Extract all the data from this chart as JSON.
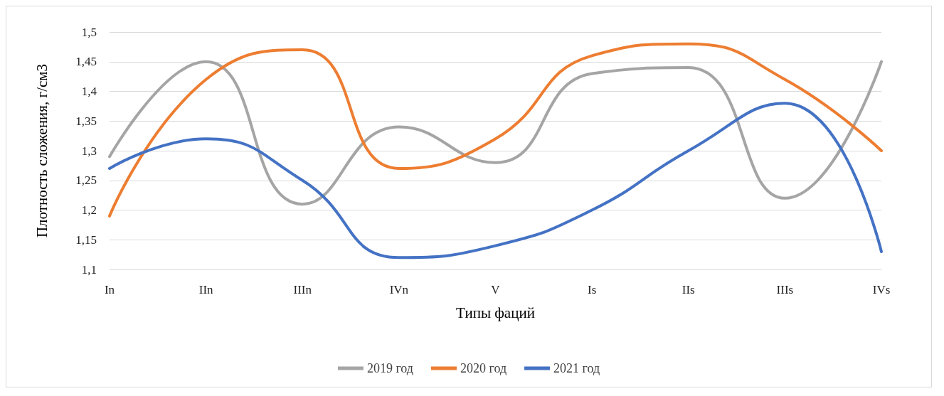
{
  "chart_data": {
    "type": "line",
    "xlabel": "Типы фаций",
    "ylabel": "Плотность сложения, г/см3",
    "categories": [
      "In",
      "IIn",
      "IIIn",
      "IVn",
      "V",
      "Is",
      "IIs",
      "IIIs",
      "IVs"
    ],
    "series": [
      {
        "name": "2019 год",
        "color": "#a5a5a5",
        "values": [
          1.29,
          1.45,
          1.21,
          1.34,
          1.28,
          1.43,
          1.44,
          1.22,
          1.45
        ]
      },
      {
        "name": "2020 год",
        "color": "#ed7d31",
        "values": [
          1.19,
          1.42,
          1.47,
          1.27,
          1.32,
          1.46,
          1.48,
          1.42,
          1.3
        ]
      },
      {
        "name": "2021 год",
        "color": "#4472c4",
        "values": [
          1.27,
          1.32,
          1.25,
          1.12,
          1.14,
          1.2,
          1.3,
          1.38,
          1.13
        ]
      }
    ],
    "ylim": [
      1.1,
      1.5
    ],
    "yticks": [
      {
        "value": 1.1,
        "label": "1,1"
      },
      {
        "value": 1.15,
        "label": "1,15"
      },
      {
        "value": 1.2,
        "label": "1,2"
      },
      {
        "value": 1.25,
        "label": "1,25"
      },
      {
        "value": 1.3,
        "label": "1,3"
      },
      {
        "value": 1.35,
        "label": "1,35"
      },
      {
        "value": 1.4,
        "label": "1,4"
      },
      {
        "value": 1.45,
        "label": "1,45"
      },
      {
        "value": 1.5,
        "label": "1,5"
      }
    ],
    "grid": "y",
    "legend": "bottom",
    "marker": "none",
    "line_style": "solid"
  }
}
